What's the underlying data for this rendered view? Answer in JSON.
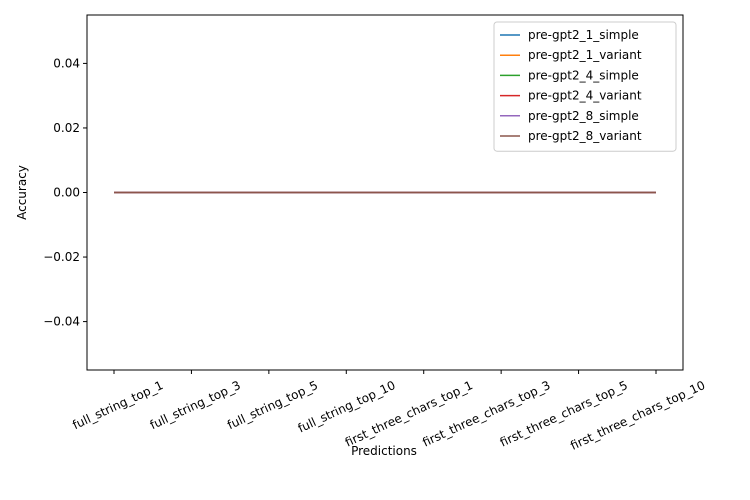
{
  "chart_data": {
    "type": "line",
    "title": "",
    "xlabel": "Predictions",
    "ylabel": "Accuracy",
    "categories": [
      "full_string_top_1",
      "full_string_top_3",
      "full_string_top_5",
      "full_string_top_10",
      "first_three_chars_top_1",
      "first_three_chars_top_3",
      "first_three_chars_top_5",
      "first_three_chars_top_10"
    ],
    "ylim": [
      -0.055,
      0.055
    ],
    "yticks": [
      -0.04,
      -0.02,
      0.0,
      0.02,
      0.04
    ],
    "ytick_labels": [
      "−0.04",
      "−0.02",
      "0.00",
      "0.02",
      "0.04"
    ],
    "grid": false,
    "legend": "upper-right",
    "series": [
      {
        "name": "pre-gpt2_1_simple",
        "color": "#1f77b4",
        "values": [
          0,
          0,
          0,
          0,
          0,
          0,
          0,
          0
        ]
      },
      {
        "name": "pre-gpt2_1_variant",
        "color": "#ff7f0e",
        "values": [
          0,
          0,
          0,
          0,
          0,
          0,
          0,
          0
        ]
      },
      {
        "name": "pre-gpt2_4_simple",
        "color": "#2ca02c",
        "values": [
          0,
          0,
          0,
          0,
          0,
          0,
          0,
          0
        ]
      },
      {
        "name": "pre-gpt2_4_variant",
        "color": "#d62728",
        "values": [
          0,
          0,
          0,
          0,
          0,
          0,
          0,
          0
        ]
      },
      {
        "name": "pre-gpt2_8_simple",
        "color": "#9467bd",
        "values": [
          0,
          0,
          0,
          0,
          0,
          0,
          0,
          0
        ]
      },
      {
        "name": "pre-gpt2_8_variant",
        "color": "#8c564b",
        "values": [
          0,
          0,
          0,
          0,
          0,
          0,
          0,
          0
        ]
      }
    ]
  }
}
